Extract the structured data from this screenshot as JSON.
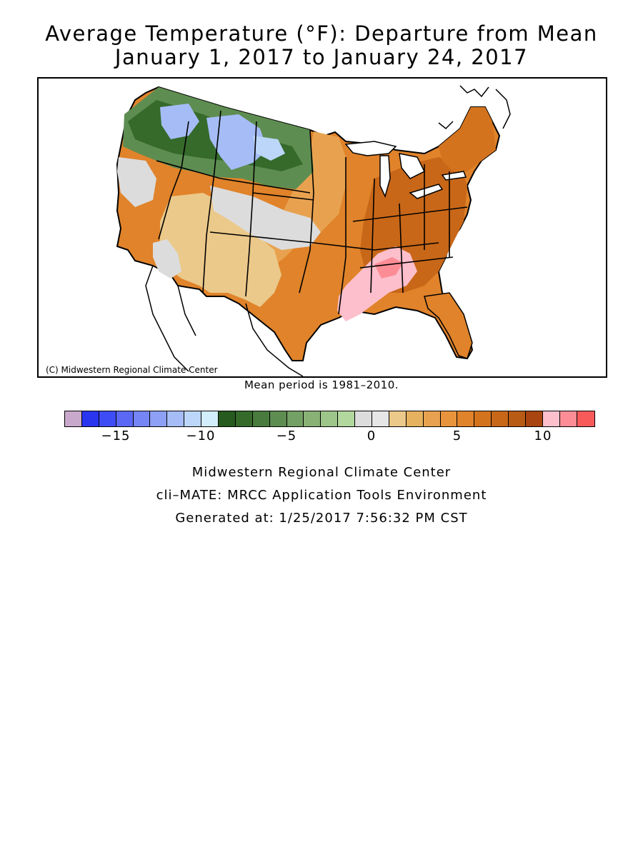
{
  "title_line1": "Average Temperature (°F): Departure from Mean",
  "title_line2": "January 1, 2017 to January 24, 2017",
  "copyright": "(C) Midwestern Regional Climate Center",
  "mean_period": "Mean period is 1981–2010.",
  "legend": {
    "colors": [
      "#c9a9cb",
      "#2a35f0",
      "#3e4cf5",
      "#5b68f5",
      "#7585f5",
      "#8da0f5",
      "#a6bcf7",
      "#bcd6f9",
      "#d2eefc",
      "#265a1e",
      "#356a2b",
      "#4a7b3e",
      "#5e8d51",
      "#73a064",
      "#89b176",
      "#9ec58a",
      "#b2d89d",
      "#dcdcdc",
      "#e6e6e6",
      "#ebc98a",
      "#e6b260",
      "#e8a24f",
      "#e8943c",
      "#e0832a",
      "#d4731e",
      "#c86718",
      "#b85b14",
      "#a84510",
      "#fdbfcb",
      "#fc8d96",
      "#f85a5a"
    ],
    "ticks": [
      "−15",
      "−10",
      "−5",
      "0",
      "5",
      "10"
    ]
  },
  "footer": {
    "line1": "Midwestern Regional Climate Center",
    "line2": "cli–MATE: MRCC Application Tools Environment",
    "line3": "Generated at: 1/25/2017 7:56:32 PM CST"
  }
}
